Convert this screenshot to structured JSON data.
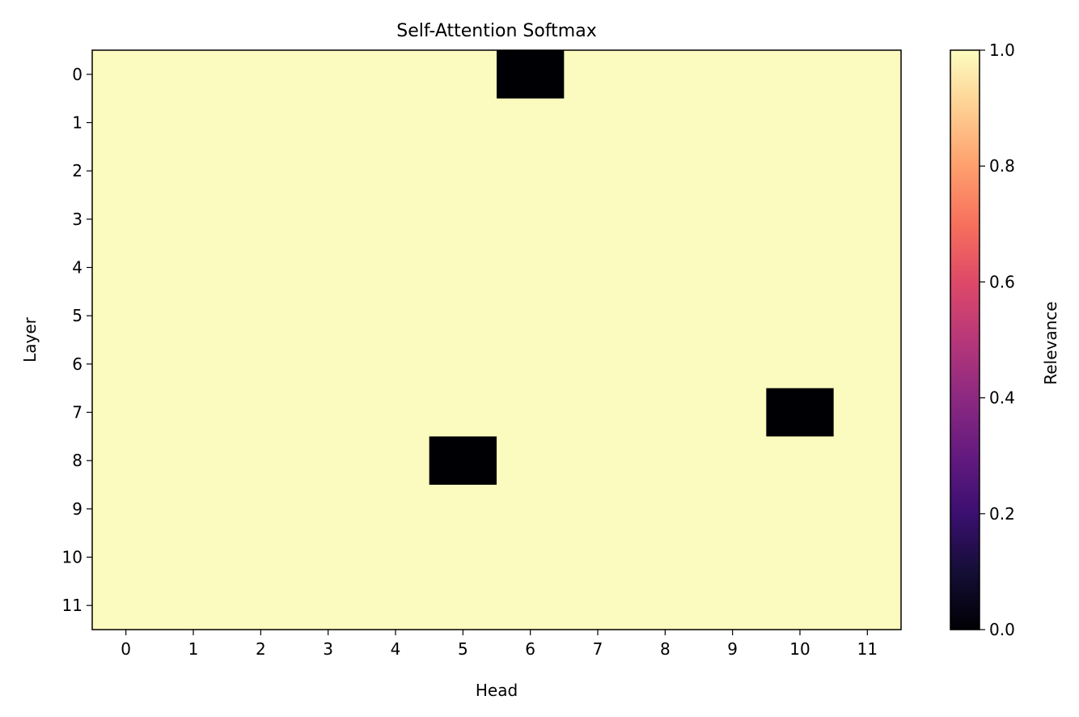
{
  "chart_data": {
    "type": "heatmap",
    "title": "Self-Attention Softmax",
    "xlabel": "Head",
    "ylabel": "Layer",
    "x_ticks": [
      "0",
      "1",
      "2",
      "3",
      "4",
      "5",
      "6",
      "7",
      "8",
      "9",
      "10",
      "11"
    ],
    "y_ticks": [
      "0",
      "1",
      "2",
      "3",
      "4",
      "5",
      "6",
      "7",
      "8",
      "9",
      "10",
      "11"
    ],
    "colormap": "magma",
    "value_range": [
      0.0,
      1.0
    ],
    "values": [
      [
        1,
        1,
        1,
        1,
        1,
        1,
        0,
        1,
        1,
        1,
        1,
        1
      ],
      [
        1,
        1,
        1,
        1,
        1,
        1,
        1,
        1,
        1,
        1,
        1,
        1
      ],
      [
        1,
        1,
        1,
        1,
        1,
        1,
        1,
        1,
        1,
        1,
        1,
        1
      ],
      [
        1,
        1,
        1,
        1,
        1,
        1,
        1,
        1,
        1,
        1,
        1,
        1
      ],
      [
        1,
        1,
        1,
        1,
        1,
        1,
        1,
        1,
        1,
        1,
        1,
        1
      ],
      [
        1,
        1,
        1,
        1,
        1,
        1,
        1,
        1,
        1,
        1,
        1,
        1
      ],
      [
        1,
        1,
        1,
        1,
        1,
        1,
        1,
        1,
        1,
        1,
        1,
        1
      ],
      [
        1,
        1,
        1,
        1,
        1,
        1,
        1,
        1,
        1,
        1,
        0,
        1
      ],
      [
        1,
        1,
        1,
        1,
        1,
        0,
        1,
        1,
        1,
        1,
        1,
        1
      ],
      [
        1,
        1,
        1,
        1,
        1,
        1,
        1,
        1,
        1,
        1,
        1,
        1
      ],
      [
        1,
        1,
        1,
        1,
        1,
        1,
        1,
        1,
        1,
        1,
        1,
        1
      ],
      [
        1,
        1,
        1,
        1,
        1,
        1,
        1,
        1,
        1,
        1,
        1,
        1
      ]
    ],
    "colorbar": {
      "label": "Relevance",
      "ticks": [
        "0.0",
        "0.2",
        "0.4",
        "0.6",
        "0.8",
        "1.0"
      ],
      "tick_values": [
        0.0,
        0.2,
        0.4,
        0.6,
        0.8,
        1.0
      ],
      "gradient_stops": [
        {
          "value": 0.0,
          "color": "#000004"
        },
        {
          "value": 0.1,
          "color": "#140e36"
        },
        {
          "value": 0.2,
          "color": "#3b0f70"
        },
        {
          "value": 0.3,
          "color": "#641a80"
        },
        {
          "value": 0.4,
          "color": "#8c2981"
        },
        {
          "value": 0.5,
          "color": "#b73779"
        },
        {
          "value": 0.6,
          "color": "#de4968"
        },
        {
          "value": 0.7,
          "color": "#f7705c"
        },
        {
          "value": 0.8,
          "color": "#fe9f6d"
        },
        {
          "value": 0.9,
          "color": "#fecf92"
        },
        {
          "value": 1.0,
          "color": "#fcfdbf"
        }
      ]
    }
  },
  "colors": {
    "high": "#fbfbbf",
    "low": "#000004",
    "axis": "#000000"
  }
}
